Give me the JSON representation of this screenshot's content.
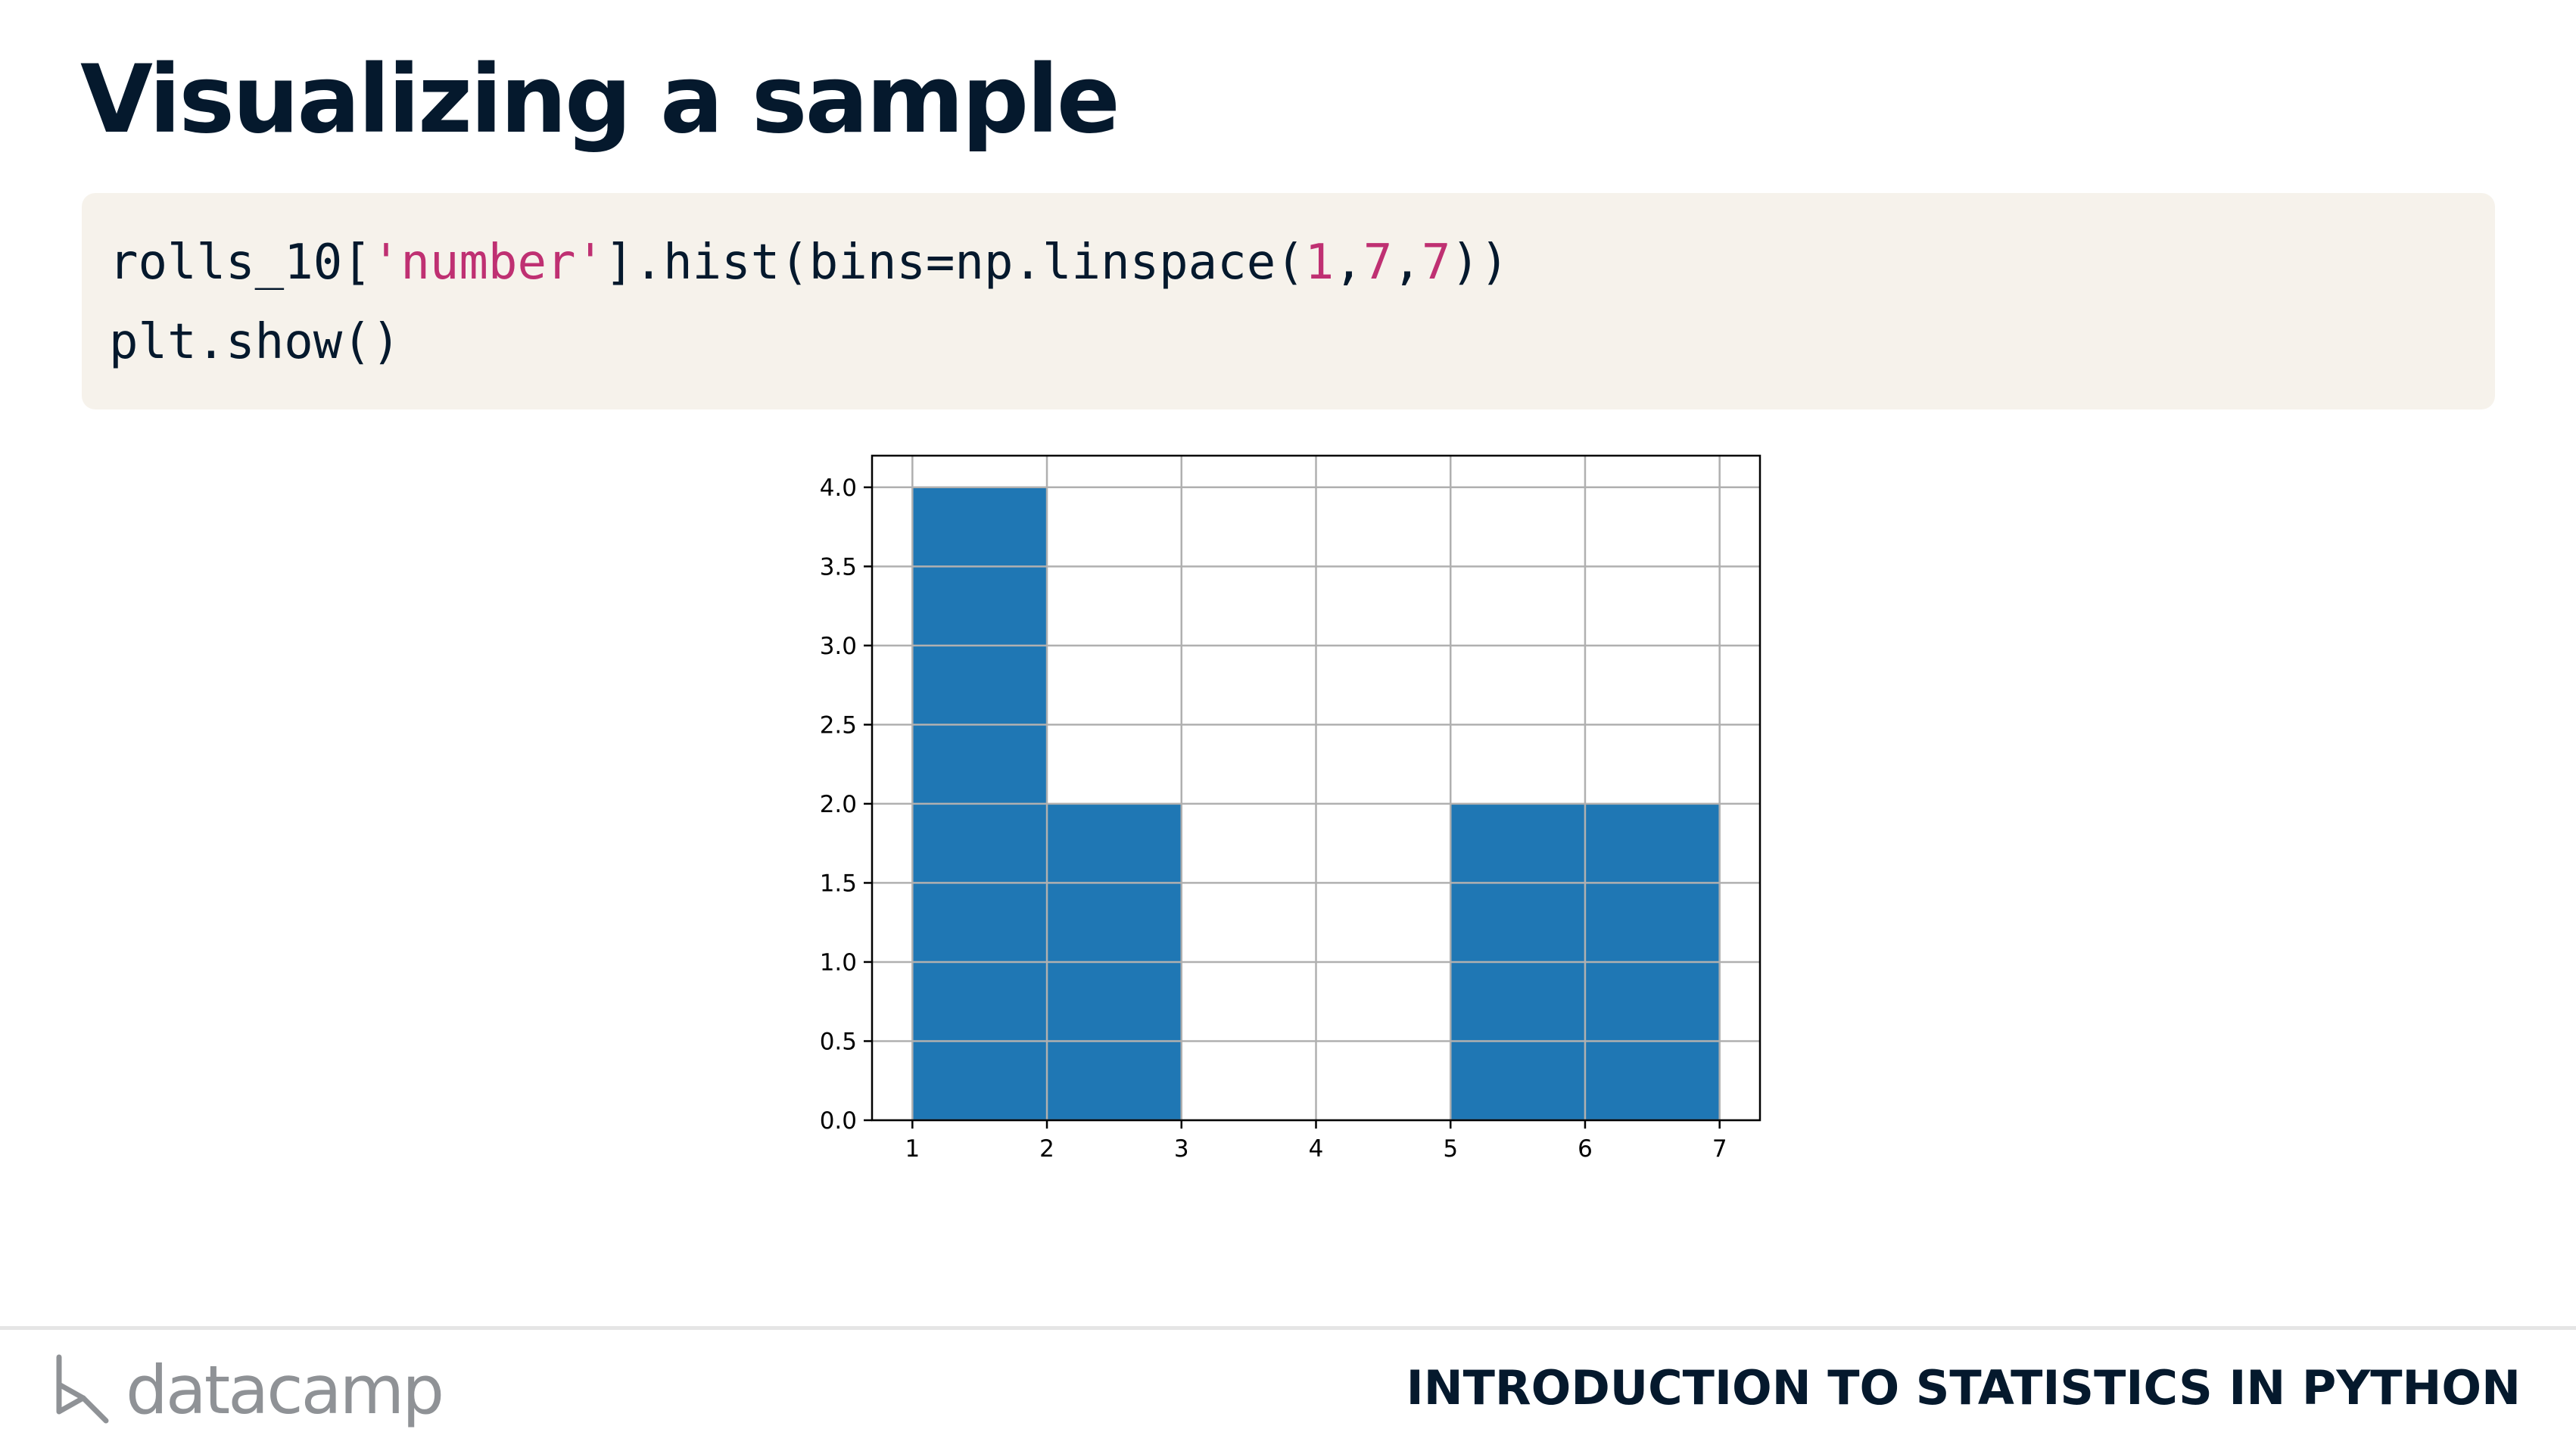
{
  "slide": {
    "title": "Visualizing a sample"
  },
  "code": {
    "line1": {
      "prefix": "rolls_10[",
      "string": "'number'",
      "middle": "].hist(bins=np.linspace(",
      "arg1": "1",
      "sep1": ",",
      "arg2": "7",
      "sep2": ",",
      "arg3": "7",
      "suffix": "))"
    },
    "line2": "plt.show()"
  },
  "colors": {
    "title": "#05192d",
    "code_background": "#f6f2eb",
    "code_literal": "#bf3072",
    "bar_fill": "#1f77b4",
    "grid": "#b0b0b0",
    "brand_gray": "#8f9296"
  },
  "chart_data": {
    "type": "bar",
    "bins": [
      {
        "start": 1,
        "end": 2,
        "count": 4
      },
      {
        "start": 2,
        "end": 3,
        "count": 2
      },
      {
        "start": 3,
        "end": 4,
        "count": 0
      },
      {
        "start": 4,
        "end": 5,
        "count": 0
      },
      {
        "start": 5,
        "end": 6,
        "count": 2
      },
      {
        "start": 6,
        "end": 7,
        "count": 2
      }
    ],
    "x_ticks": [
      "1",
      "2",
      "3",
      "4",
      "5",
      "6",
      "7"
    ],
    "y_ticks": [
      "0.0",
      "0.5",
      "1.0",
      "1.5",
      "2.0",
      "2.5",
      "3.0",
      "3.5",
      "4.0"
    ],
    "xlim": [
      0.7,
      7.3
    ],
    "ylim": [
      0,
      4.2
    ],
    "grid": true,
    "title": "",
    "xlabel": "",
    "ylabel": ""
  },
  "footer": {
    "brand": "datacamp",
    "logo_icon": "datacamp-logo-icon",
    "course": "INTRODUCTION TO STATISTICS IN PYTHON"
  }
}
